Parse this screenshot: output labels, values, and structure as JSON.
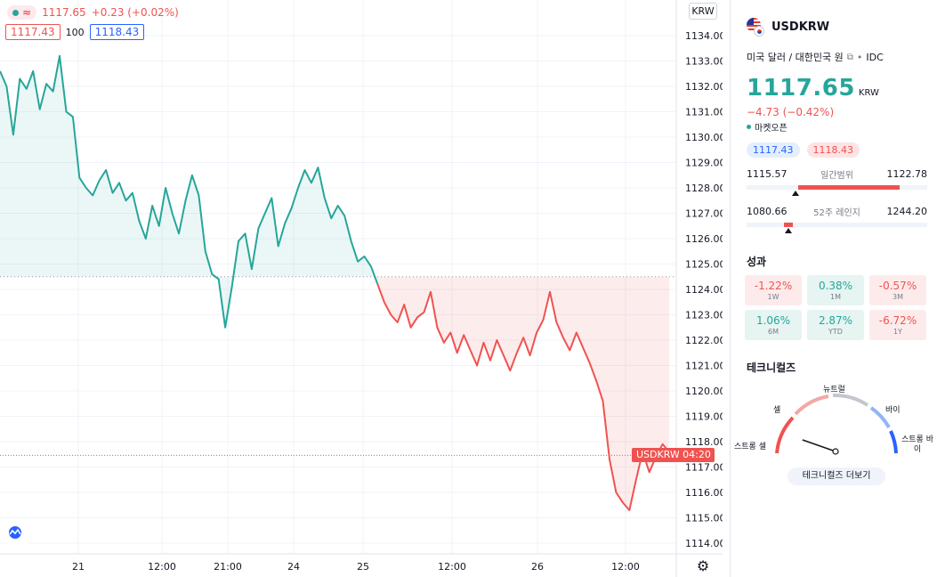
{
  "legend": {
    "price": "1117.65",
    "change": "+0.23 (+0.02%)",
    "bid": "1117.43",
    "spread": "100",
    "ask": "1118.43"
  },
  "chart": {
    "currency_button": "KRW",
    "symbol_label": "USDKRW",
    "countdown_label": "04:20",
    "y_ticks": [
      "1134.00",
      "1133.00",
      "1132.00",
      "1131.00",
      "1130.00",
      "1129.00",
      "1128.00",
      "1127.00",
      "1126.00",
      "1125.00",
      "1124.00",
      "1123.00",
      "1122.00",
      "1121.00",
      "1120.00",
      "1119.00",
      "1118.00",
      "1117.00",
      "1116.00",
      "1115.00",
      "1114.00"
    ],
    "x_ticks": [
      "21",
      "12:00",
      "21:00",
      "24",
      "25",
      "12:00",
      "26",
      "12:00"
    ],
    "colors": {
      "up": "#26a69a",
      "down": "#ef5350"
    }
  },
  "chart_data": {
    "type": "area",
    "xlabel": "",
    "ylabel": "",
    "ylim": [
      1113.5,
      1134.5
    ],
    "baseline": 1124.5,
    "x_ticks": [
      "21",
      "12:00",
      "21:00",
      "24",
      "25",
      "12:00",
      "26",
      "12:00"
    ],
    "series": [
      {
        "values": [
          1132.6,
          1132.0,
          1130.1,
          1132.3,
          1131.9,
          1132.6,
          1131.1,
          1132.1,
          1131.8,
          1133.2,
          1131.0,
          1130.8,
          1128.4,
          1128.0,
          1127.7,
          1128.3,
          1128.7,
          1127.8,
          1128.2,
          1127.5,
          1127.8,
          1126.7,
          1126.0,
          1127.3,
          1126.5,
          1128.0,
          1127.0,
          1126.2,
          1127.5,
          1128.5,
          1127.7,
          1125.5,
          1124.6,
          1124.4,
          1122.5,
          1124.1,
          1125.9,
          1126.2,
          1124.8,
          1126.4,
          1127.0,
          1127.6,
          1125.7,
          1126.6,
          1127.2,
          1128.0,
          1128.7,
          1128.2,
          1128.8,
          1127.6,
          1126.8,
          1127.3,
          1126.9,
          1125.9,
          1125.1,
          1125.3,
          1124.9,
          1124.2,
          1123.5,
          1123.0,
          1122.7,
          1123.4,
          1122.5,
          1122.9,
          1123.1,
          1123.9,
          1122.5,
          1121.9,
          1122.3,
          1121.5,
          1122.2,
          1121.6,
          1121.0,
          1121.9,
          1121.2,
          1122.0,
          1121.4,
          1120.8,
          1121.5,
          1122.1,
          1121.4,
          1122.3,
          1122.8,
          1123.9,
          1122.7,
          1122.1,
          1121.6,
          1122.3,
          1121.7,
          1121.1,
          1120.4,
          1119.6,
          1117.3,
          1116.0,
          1115.6,
          1115.3,
          1116.5,
          1117.6,
          1116.8,
          1117.4,
          1117.9,
          1117.6
        ]
      }
    ]
  },
  "panel": {
    "symbol": "USDKRW",
    "description": "미국 달러 / 대한민국 원",
    "exchange": "IDC",
    "price": "1117.65",
    "price_currency": "KRW",
    "change": "−4.73 (−0.42%)",
    "market_status": "마켓오픈",
    "bid": "1117.43",
    "ask": "1118.43",
    "day_range": {
      "low": "1115.57",
      "label": "일간범위",
      "high": "1122.78",
      "position": 0.27
    },
    "week52_range": {
      "low": "1080.66",
      "label": "52주 레인지",
      "high": "1244.20",
      "position": 0.23
    },
    "performance_title": "성과",
    "performance": [
      {
        "value": "-1.22%",
        "label": "1W",
        "dir": "neg"
      },
      {
        "value": "0.38%",
        "label": "1M",
        "dir": "pos"
      },
      {
        "value": "-0.57%",
        "label": "3M",
        "dir": "neg"
      },
      {
        "value": "1.06%",
        "label": "6M",
        "dir": "pos"
      },
      {
        "value": "2.87%",
        "label": "YTD",
        "dir": "pos"
      },
      {
        "value": "-6.72%",
        "label": "1Y",
        "dir": "neg"
      }
    ],
    "technicals_title": "테크니컬즈",
    "gauge": {
      "strong_sell": "스트롱 셀",
      "sell": "셀",
      "neutral": "뉴트럴",
      "buy": "바이",
      "strong_buy": "스트롱 바이",
      "needle_value": 0.18
    },
    "technicals_button": "테크니컬즈 더보기"
  }
}
